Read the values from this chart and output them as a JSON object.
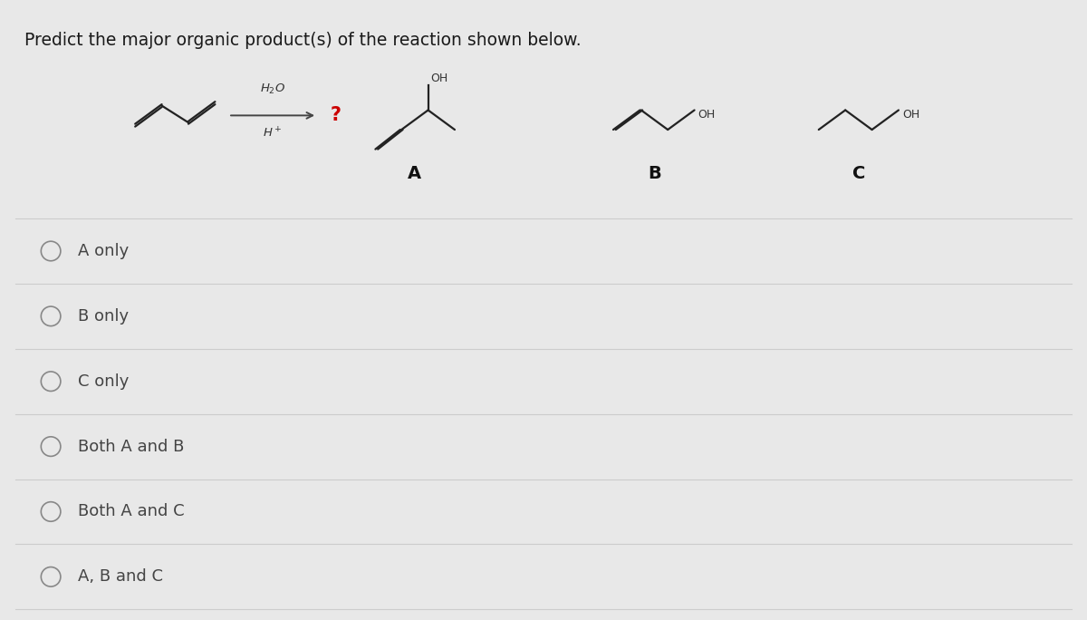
{
  "title": "Predict the major organic product(s) of the reaction shown below.",
  "title_fontsize": 13.5,
  "title_color": "#1a1a1a",
  "background_color": "#e8e8e8",
  "panel_color": "#ffffff",
  "choices": [
    "A only",
    "B only",
    "C only",
    "Both A and B",
    "Both A and C",
    "A, B and C"
  ],
  "choice_fontsize": 13,
  "choice_color": "#444444",
  "circle_color": "#888888",
  "line_color": "#cccccc",
  "arrow_color": "#444444",
  "question_mark_color": "#cc0000",
  "h2o_color": "#333333",
  "h_plus_color": "#333333",
  "oh_color": "#333333",
  "structure_color": "#222222",
  "label_color": "#111111",
  "reagent_above": "H₂O",
  "reagent_below": "H⁺"
}
